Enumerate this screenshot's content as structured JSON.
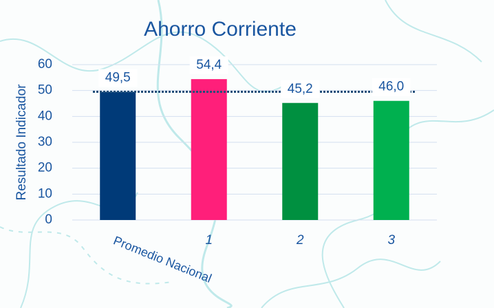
{
  "chart_data": {
    "type": "bar",
    "title": "Ahorro Corriente",
    "y_label": "Resultado Indicador",
    "categories": [
      "Promedio Nacional",
      "1",
      "2",
      "3"
    ],
    "values": [
      49.5,
      54.4,
      45.2,
      46.0
    ],
    "value_labels": [
      "49,5",
      "54,4",
      "45,2",
      "46,0"
    ],
    "colors": [
      "#003a78",
      "#ff1f7a",
      "#009040",
      "#00b04f"
    ],
    "reference_line": 49.5,
    "reference_color": "#1f4e79",
    "ylim": [
      0,
      60
    ],
    "yticks": [
      0,
      10,
      20,
      30,
      40,
      50,
      60
    ],
    "grid": true
  }
}
